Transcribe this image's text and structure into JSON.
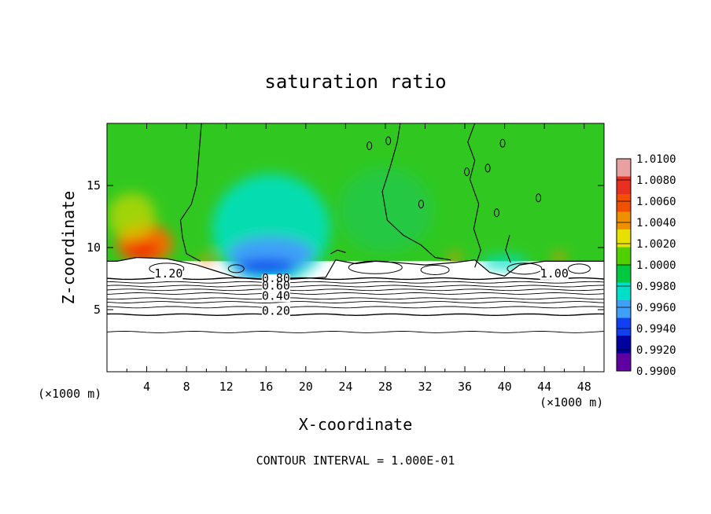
{
  "chart_data": {
    "type": "heatmap",
    "title": "saturation ratio",
    "xlabel": "X-coordinate",
    "ylabel": "Z-coordinate",
    "x_unit_label": "(×1000 m)",
    "z_unit_label": "(×1000 m)",
    "xlim": [
      0,
      50
    ],
    "ylim": [
      0,
      20
    ],
    "x_ticks": [
      4,
      8,
      12,
      16,
      20,
      24,
      28,
      32,
      36,
      40,
      44,
      48
    ],
    "y_ticks": [
      5,
      10,
      15
    ],
    "colorbar": {
      "levels": [
        "1.0100",
        "1.0080",
        "1.0060",
        "1.0040",
        "1.0020",
        "1.0000",
        "0.9980",
        "0.9960",
        "0.9940",
        "0.9920",
        "0.9900"
      ],
      "colors": [
        "#e8a0a0",
        "#e83020",
        "#f05000",
        "#f09000",
        "#e8e000",
        "#50d000",
        "#00c840",
        "#00e0c8",
        "#40a0f8",
        "#1040f0",
        "#0000a0",
        "#6000a0"
      ]
    },
    "contour_labels": [
      {
        "text": "1.20",
        "x": 6.2,
        "y": 7.6
      },
      {
        "text": "0.80",
        "x": 17.0,
        "y": 7.2
      },
      {
        "text": "0.60",
        "x": 17.0,
        "y": 6.6
      },
      {
        "text": "0.40",
        "x": 17.0,
        "y": 5.8
      },
      {
        "text": "0.20",
        "x": 17.0,
        "y": 4.6
      },
      {
        "text": "1.00",
        "x": 45.0,
        "y": 7.6
      }
    ],
    "contour_interval_text": "CONTOUR INTERVAL = 1.000E-01",
    "background_value": 1.0
  }
}
